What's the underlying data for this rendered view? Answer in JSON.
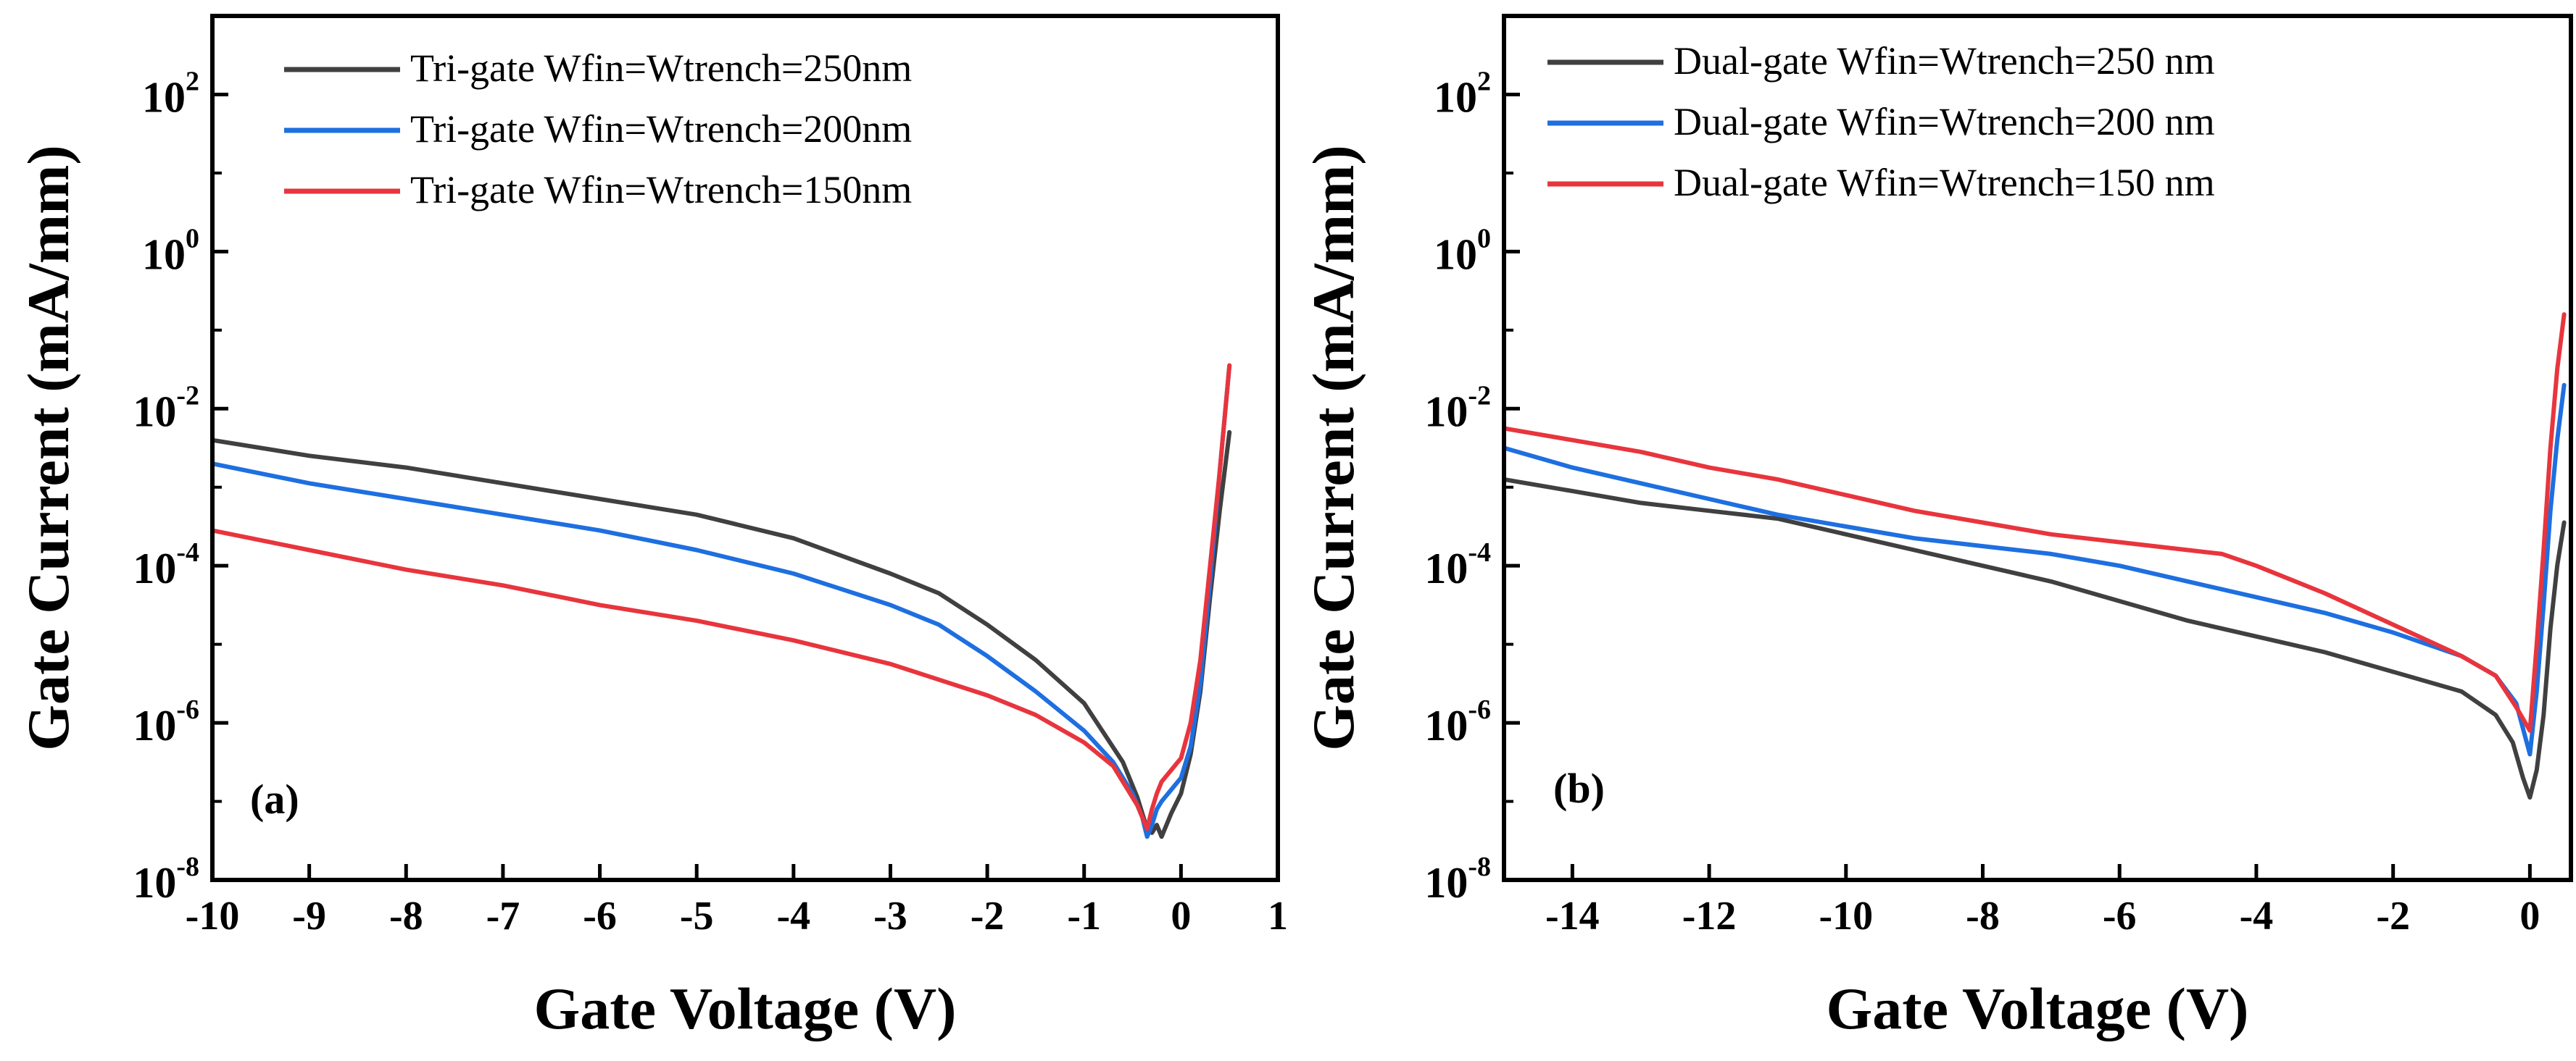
{
  "chart_data": [
    {
      "type": "line",
      "panel_label": "(a)",
      "xlabel": "Gate Voltage (V)",
      "ylabel": "Gate Current (mA/mm)",
      "xlim": [
        -10,
        1
      ],
      "ylim_log10": [
        -8,
        3
      ],
      "yscale": "log",
      "x_ticks": [
        -10,
        -9,
        -8,
        -7,
        -6,
        -5,
        -4,
        -3,
        -2,
        -1,
        0,
        1
      ],
      "x_tick_labels": [
        "-10",
        "-9",
        "-8",
        "-7",
        "-6",
        "-5",
        "-4",
        "-3",
        "-2",
        "-1",
        "0",
        "1"
      ],
      "y_tick_exponents": [
        "2",
        "0",
        "-2",
        "-4",
        "-6",
        "-8"
      ],
      "y_tick_base": "10",
      "legend_position": "top-left",
      "series": [
        {
          "name": "Tri-gate Wfin=Wtrench=250nm",
          "color": "#404040",
          "x": [
            -10,
            -9,
            -8,
            -7,
            -6,
            -5,
            -4,
            -3,
            -2.5,
            -2,
            -1.5,
            -1,
            -0.6,
            -0.45,
            -0.35,
            -0.3,
            -0.25,
            -0.2,
            -0.15,
            -0.1,
            0,
            0.1,
            0.2,
            0.3,
            0.4,
            0.5
          ],
          "log10_y": [
            -2.4,
            -2.6,
            -2.75,
            -2.95,
            -3.15,
            -3.35,
            -3.65,
            -4.1,
            -4.35,
            -4.75,
            -5.2,
            -5.75,
            -6.5,
            -6.95,
            -7.35,
            -7.4,
            -7.3,
            -7.45,
            -7.3,
            -7.15,
            -6.9,
            -6.4,
            -5.6,
            -4.4,
            -3.3,
            -2.3
          ]
        },
        {
          "name": "Tri-gate Wfin=Wtrench=200nm",
          "color": "#1e6fe0",
          "x": [
            -10,
            -9,
            -8,
            -7,
            -6,
            -5,
            -4,
            -3,
            -2.5,
            -2,
            -1.5,
            -1,
            -0.7,
            -0.5,
            -0.4,
            -0.35,
            -0.3,
            -0.25,
            -0.2,
            -0.1,
            0,
            0.1,
            0.2,
            0.3,
            0.4,
            0.5
          ],
          "log10_y": [
            -2.7,
            -2.95,
            -3.15,
            -3.35,
            -3.55,
            -3.8,
            -4.1,
            -4.5,
            -4.75,
            -5.15,
            -5.6,
            -6.1,
            -6.5,
            -6.9,
            -7.2,
            -7.45,
            -7.3,
            -7.1,
            -7.0,
            -6.85,
            -6.7,
            -6.3,
            -5.5,
            -4.2,
            -2.8,
            -1.45
          ]
        },
        {
          "name": "Tri-gate Wfin=Wtrench=150nm",
          "color": "#e8353d",
          "x": [
            -10,
            -9,
            -8,
            -7,
            -6,
            -5,
            -4,
            -3,
            -2,
            -1.5,
            -1,
            -0.7,
            -0.55,
            -0.45,
            -0.4,
            -0.35,
            -0.3,
            -0.25,
            -0.2,
            -0.1,
            0,
            0.1,
            0.2,
            0.3,
            0.4,
            0.5
          ],
          "log10_y": [
            -3.55,
            -3.8,
            -4.05,
            -4.25,
            -4.5,
            -4.7,
            -4.95,
            -5.25,
            -5.65,
            -5.9,
            -6.25,
            -6.55,
            -6.85,
            -7.05,
            -7.2,
            -7.35,
            -7.1,
            -6.9,
            -6.75,
            -6.6,
            -6.45,
            -6.0,
            -5.2,
            -4.0,
            -2.8,
            -1.45
          ]
        }
      ]
    },
    {
      "type": "line",
      "panel_label": "(b)",
      "xlabel": "Gate Voltage (V)",
      "ylabel": "Gate Current (mA/mm)",
      "xlim": [
        -15,
        0.6
      ],
      "ylim_log10": [
        -8,
        3
      ],
      "yscale": "log",
      "x_ticks": [
        -14,
        -12,
        -10,
        -8,
        -6,
        -4,
        -2,
        0
      ],
      "x_tick_labels": [
        "-14",
        "-12",
        "-10",
        "-8",
        "-6",
        "-4",
        "-2",
        "0"
      ],
      "y_tick_exponents": [
        "2",
        "0",
        "-2",
        "-4",
        "-6",
        "-8"
      ],
      "y_tick_base": "10",
      "legend_position": "top-left",
      "series": [
        {
          "name": "Dual-gate Wfin=Wtrench=250 nm",
          "color": "#404040",
          "x": [
            -15,
            -14,
            -13,
            -12,
            -11,
            -10,
            -9,
            -8,
            -7,
            -6,
            -5,
            -4,
            -3,
            -2,
            -1,
            -0.5,
            -0.25,
            -0.1,
            0,
            0.1,
            0.2,
            0.3,
            0.4,
            0.5
          ],
          "log10_y": [
            -2.9,
            -3.05,
            -3.2,
            -3.3,
            -3.4,
            -3.6,
            -3.8,
            -4.0,
            -4.2,
            -4.45,
            -4.7,
            -4.9,
            -5.1,
            -5.35,
            -5.6,
            -5.9,
            -6.25,
            -6.7,
            -6.95,
            -6.6,
            -5.9,
            -4.8,
            -4.0,
            -3.45
          ]
        },
        {
          "name": "Dual-gate Wfin=Wtrench=200 nm",
          "color": "#1e6fe0",
          "x": [
            -15,
            -14,
            -13,
            -12,
            -11,
            -10,
            -9,
            -8,
            -7.5,
            -7,
            -6,
            -5,
            -4,
            -3,
            -2,
            -1,
            -0.5,
            -0.2,
            0,
            0.1,
            0.2,
            0.3,
            0.4,
            0.5
          ],
          "log10_y": [
            -2.5,
            -2.75,
            -2.95,
            -3.15,
            -3.35,
            -3.5,
            -3.65,
            -3.75,
            -3.8,
            -3.85,
            -4.0,
            -4.2,
            -4.4,
            -4.6,
            -4.85,
            -5.15,
            -5.4,
            -5.75,
            -6.4,
            -5.6,
            -4.5,
            -3.3,
            -2.4,
            -1.7
          ]
        },
        {
          "name": "Dual-gate Wfin=Wtrench=150 nm",
          "color": "#e8353d",
          "x": [
            -15,
            -14,
            -13,
            -12,
            -11,
            -10,
            -9,
            -8,
            -7,
            -6,
            -5,
            -4.5,
            -4,
            -3,
            -2,
            -1,
            -0.5,
            -0.2,
            0,
            0.1,
            0.2,
            0.3,
            0.4,
            0.5
          ],
          "log10_y": [
            -2.25,
            -2.4,
            -2.55,
            -2.75,
            -2.9,
            -3.1,
            -3.3,
            -3.45,
            -3.6,
            -3.7,
            -3.8,
            -3.85,
            -4.0,
            -4.35,
            -4.75,
            -5.15,
            -5.4,
            -5.8,
            -6.1,
            -5.0,
            -3.8,
            -2.5,
            -1.5,
            -0.8
          ]
        }
      ]
    }
  ]
}
